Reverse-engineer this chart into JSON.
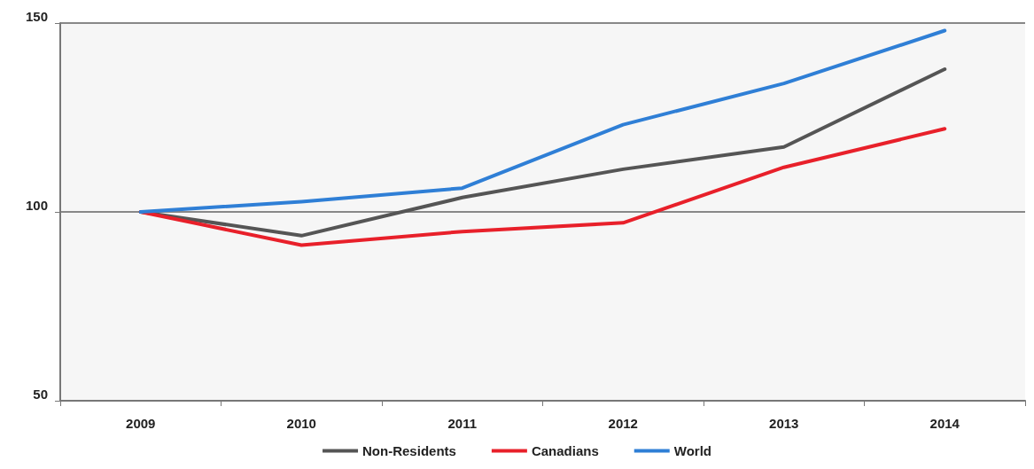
{
  "chart_data": {
    "type": "line",
    "categories": [
      "2009",
      "2010",
      "2011",
      "2012",
      "2013",
      "2014"
    ],
    "series": [
      {
        "name": "Non-Residents",
        "color": "#555555",
        "values": [
          100,
          93.7,
          103.8,
          111.3,
          117.2,
          137.8
        ]
      },
      {
        "name": "Canadians",
        "color": "#e8202a",
        "values": [
          100,
          91.2,
          94.8,
          97.1,
          111.8,
          122
        ]
      },
      {
        "name": "World",
        "color": "#2f7fd6",
        "values": [
          100,
          102.7,
          106.3,
          123.1,
          134,
          148
        ]
      }
    ],
    "ylim": [
      50,
      150
    ],
    "yticks": [
      50,
      100,
      150
    ],
    "grid": "y",
    "legend": "bottom",
    "marker": "none",
    "line_style": "solid"
  }
}
